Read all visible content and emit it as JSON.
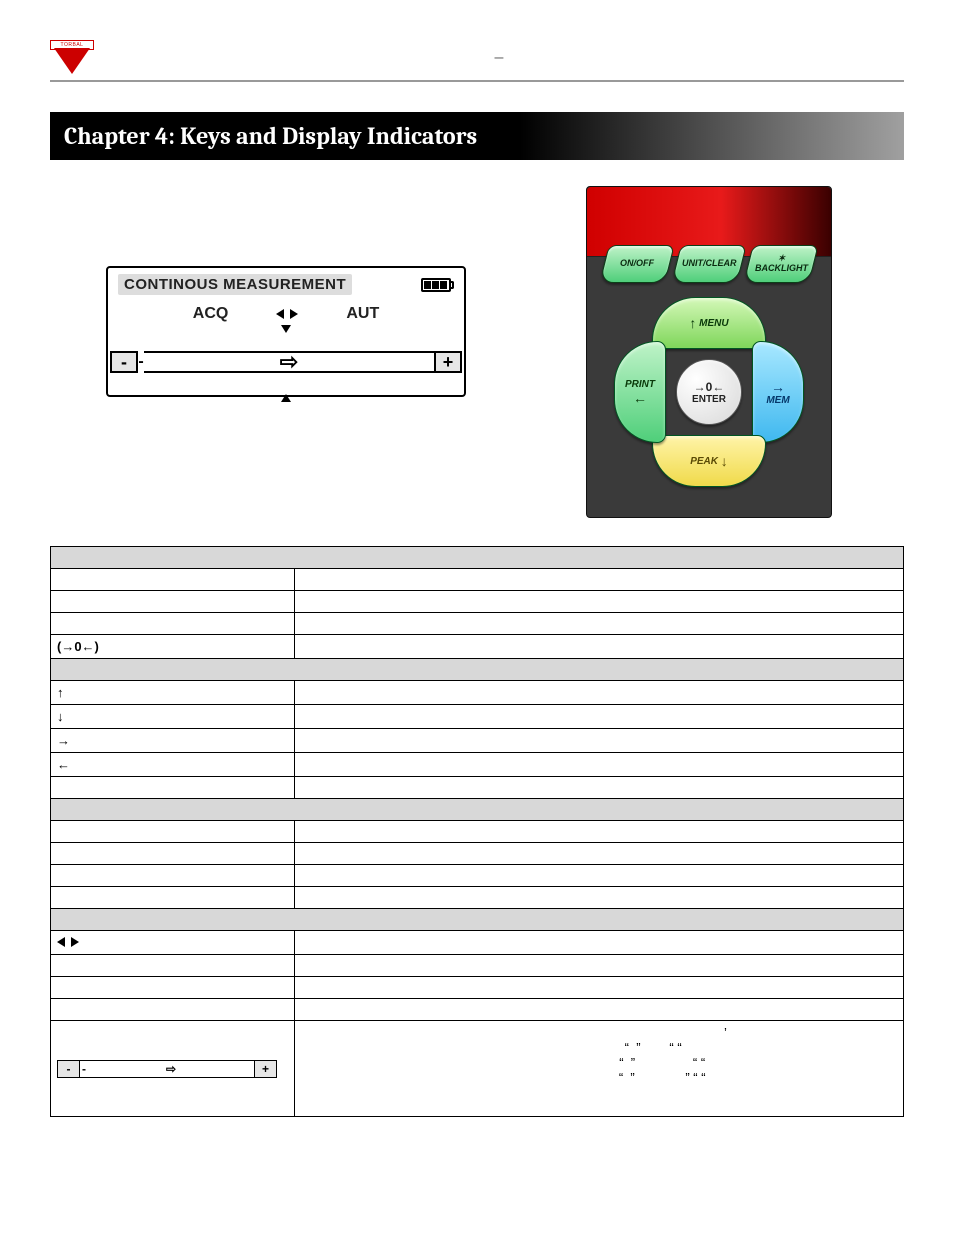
{
  "header": {
    "logo_text": "TORBAL",
    "dash": "–"
  },
  "chapter_title": "Chapter 4: Keys and Display Indicators",
  "lcd": {
    "title": "CONTINOUS MEASUREMENT",
    "acq": "ACQ",
    "aut": "AUT",
    "minus": "-",
    "submark": "-",
    "plus": "+",
    "arrow": "⇨"
  },
  "keypad": {
    "top": [
      "ON/OFF",
      "UNIT/CLEAR",
      "✶\nBACKLIGHT"
    ],
    "seg_top": {
      "arrow": "↑",
      "label": "MENU"
    },
    "seg_right": {
      "arrow": "→",
      "label": "MEM"
    },
    "seg_bottom": {
      "label": "PEAK",
      "arrow": "↓"
    },
    "seg_left": {
      "label": "PRINT",
      "arrow": "←"
    },
    "seg_center": {
      "arrows": "→0←",
      "label": "ENTER"
    }
  },
  "table": {
    "sections": [
      {
        "title": "",
        "rows": [
          {
            "k": "",
            "v": ""
          },
          {
            "k": "",
            "v": ""
          },
          {
            "k": "",
            "v": ""
          },
          {
            "k": "(→0←)",
            "v": ""
          }
        ]
      },
      {
        "title": "",
        "rows": [
          {
            "k": "↑",
            "v": ""
          },
          {
            "k": "↓",
            "v": ""
          },
          {
            "k": "→",
            "v": ""
          },
          {
            "k": "←",
            "v": ""
          },
          {
            "k": "",
            "v": ""
          }
        ]
      },
      {
        "title": "",
        "rows": [
          {
            "k": "",
            "v": ""
          },
          {
            "k": "",
            "v": ""
          },
          {
            "k": "",
            "v": ""
          },
          {
            "k": "",
            "v": ""
          }
        ]
      },
      {
        "title": "",
        "rows": [
          {
            "k": "dir",
            "v": ""
          },
          {
            "k": "",
            "v": ""
          },
          {
            "k": "",
            "v": ""
          },
          {
            "k": "",
            "v": ""
          },
          {
            "k": "bar",
            "v": "quotes"
          }
        ]
      }
    ],
    "quotes_line1": "’",
    "quotes_line2": "“  ”        “ “",
    "quotes_line3": "“  ”                “ “",
    "quotes_line4": "“  ”              ” “ “"
  }
}
